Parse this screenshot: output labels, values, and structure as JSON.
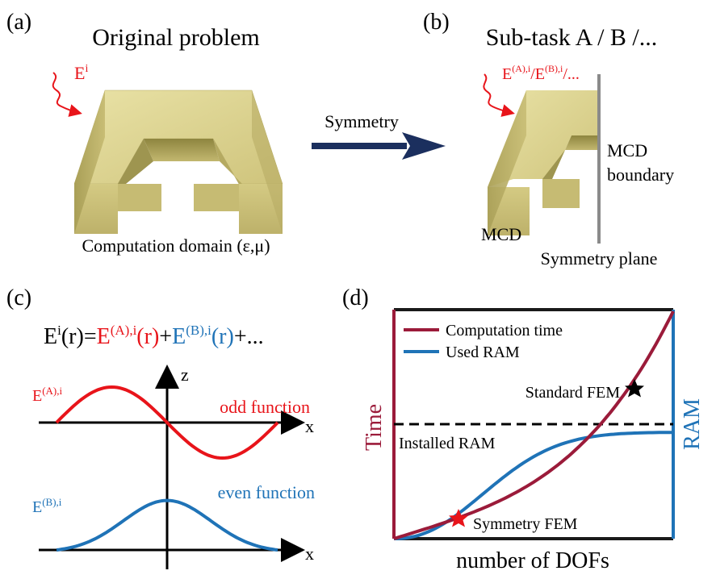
{
  "colors": {
    "red": "#e8141a",
    "blue": "#1f73b7",
    "crimson": "#9b1b3a",
    "navy": "#1b2f5e",
    "gold": "#d8cf8a",
    "gray": "#8a8a8a",
    "black": "#000000"
  },
  "panel_a": {
    "label": "(a)",
    "title": "Original problem",
    "incident_field": "E",
    "incident_sup": "i",
    "domain_label": "Computation domain (ε,μ)"
  },
  "arrow": {
    "label": "Symmetry"
  },
  "panel_b": {
    "label": "(b)",
    "title": "Sub-task A / B /...",
    "field_E1": "E",
    "field_sup1": "(A),i",
    "field_sep1": "/",
    "field_E2": "E",
    "field_sup2": "(B),i",
    "field_tail": "/...",
    "mcd_boundary_line1": "MCD",
    "mcd_boundary_line2": "boundary",
    "mcd_label": "MCD",
    "symmetry_plane_label": "Symmetry plane"
  },
  "panel_c": {
    "label": "(c)",
    "eq_E": "E",
    "eq_sup": "i",
    "eq_r": "(r)=",
    "eq_EA": "E",
    "eq_EA_sup": "(A),i",
    "eq_EA_r": "(r)",
    "eq_plus1": "+",
    "eq_EB": "E",
    "eq_EB_sup": "(B),i",
    "eq_EB_r": "(r)",
    "eq_tail": "+...",
    "z_axis": "z",
    "x_axis": "x",
    "x_axis2": "x",
    "odd_label": "odd function",
    "even_label": "even function",
    "odd_E": "E",
    "odd_sup": "(A),i",
    "even_E": "E",
    "even_sup": "(B),i"
  },
  "panel_d": {
    "label": "(d)",
    "legend": [
      {
        "name": "Computation time",
        "color": "#9b1b3a"
      },
      {
        "name": "Used RAM",
        "color": "#1f73b7"
      }
    ],
    "ylabel_left": "Time",
    "ylabel_right": "RAM",
    "xlabel": "number of DOFs",
    "installed_ram": "Installed RAM",
    "standard_fem": "Standard FEM",
    "symmetry_fem": "Symmetry FEM"
  }
}
